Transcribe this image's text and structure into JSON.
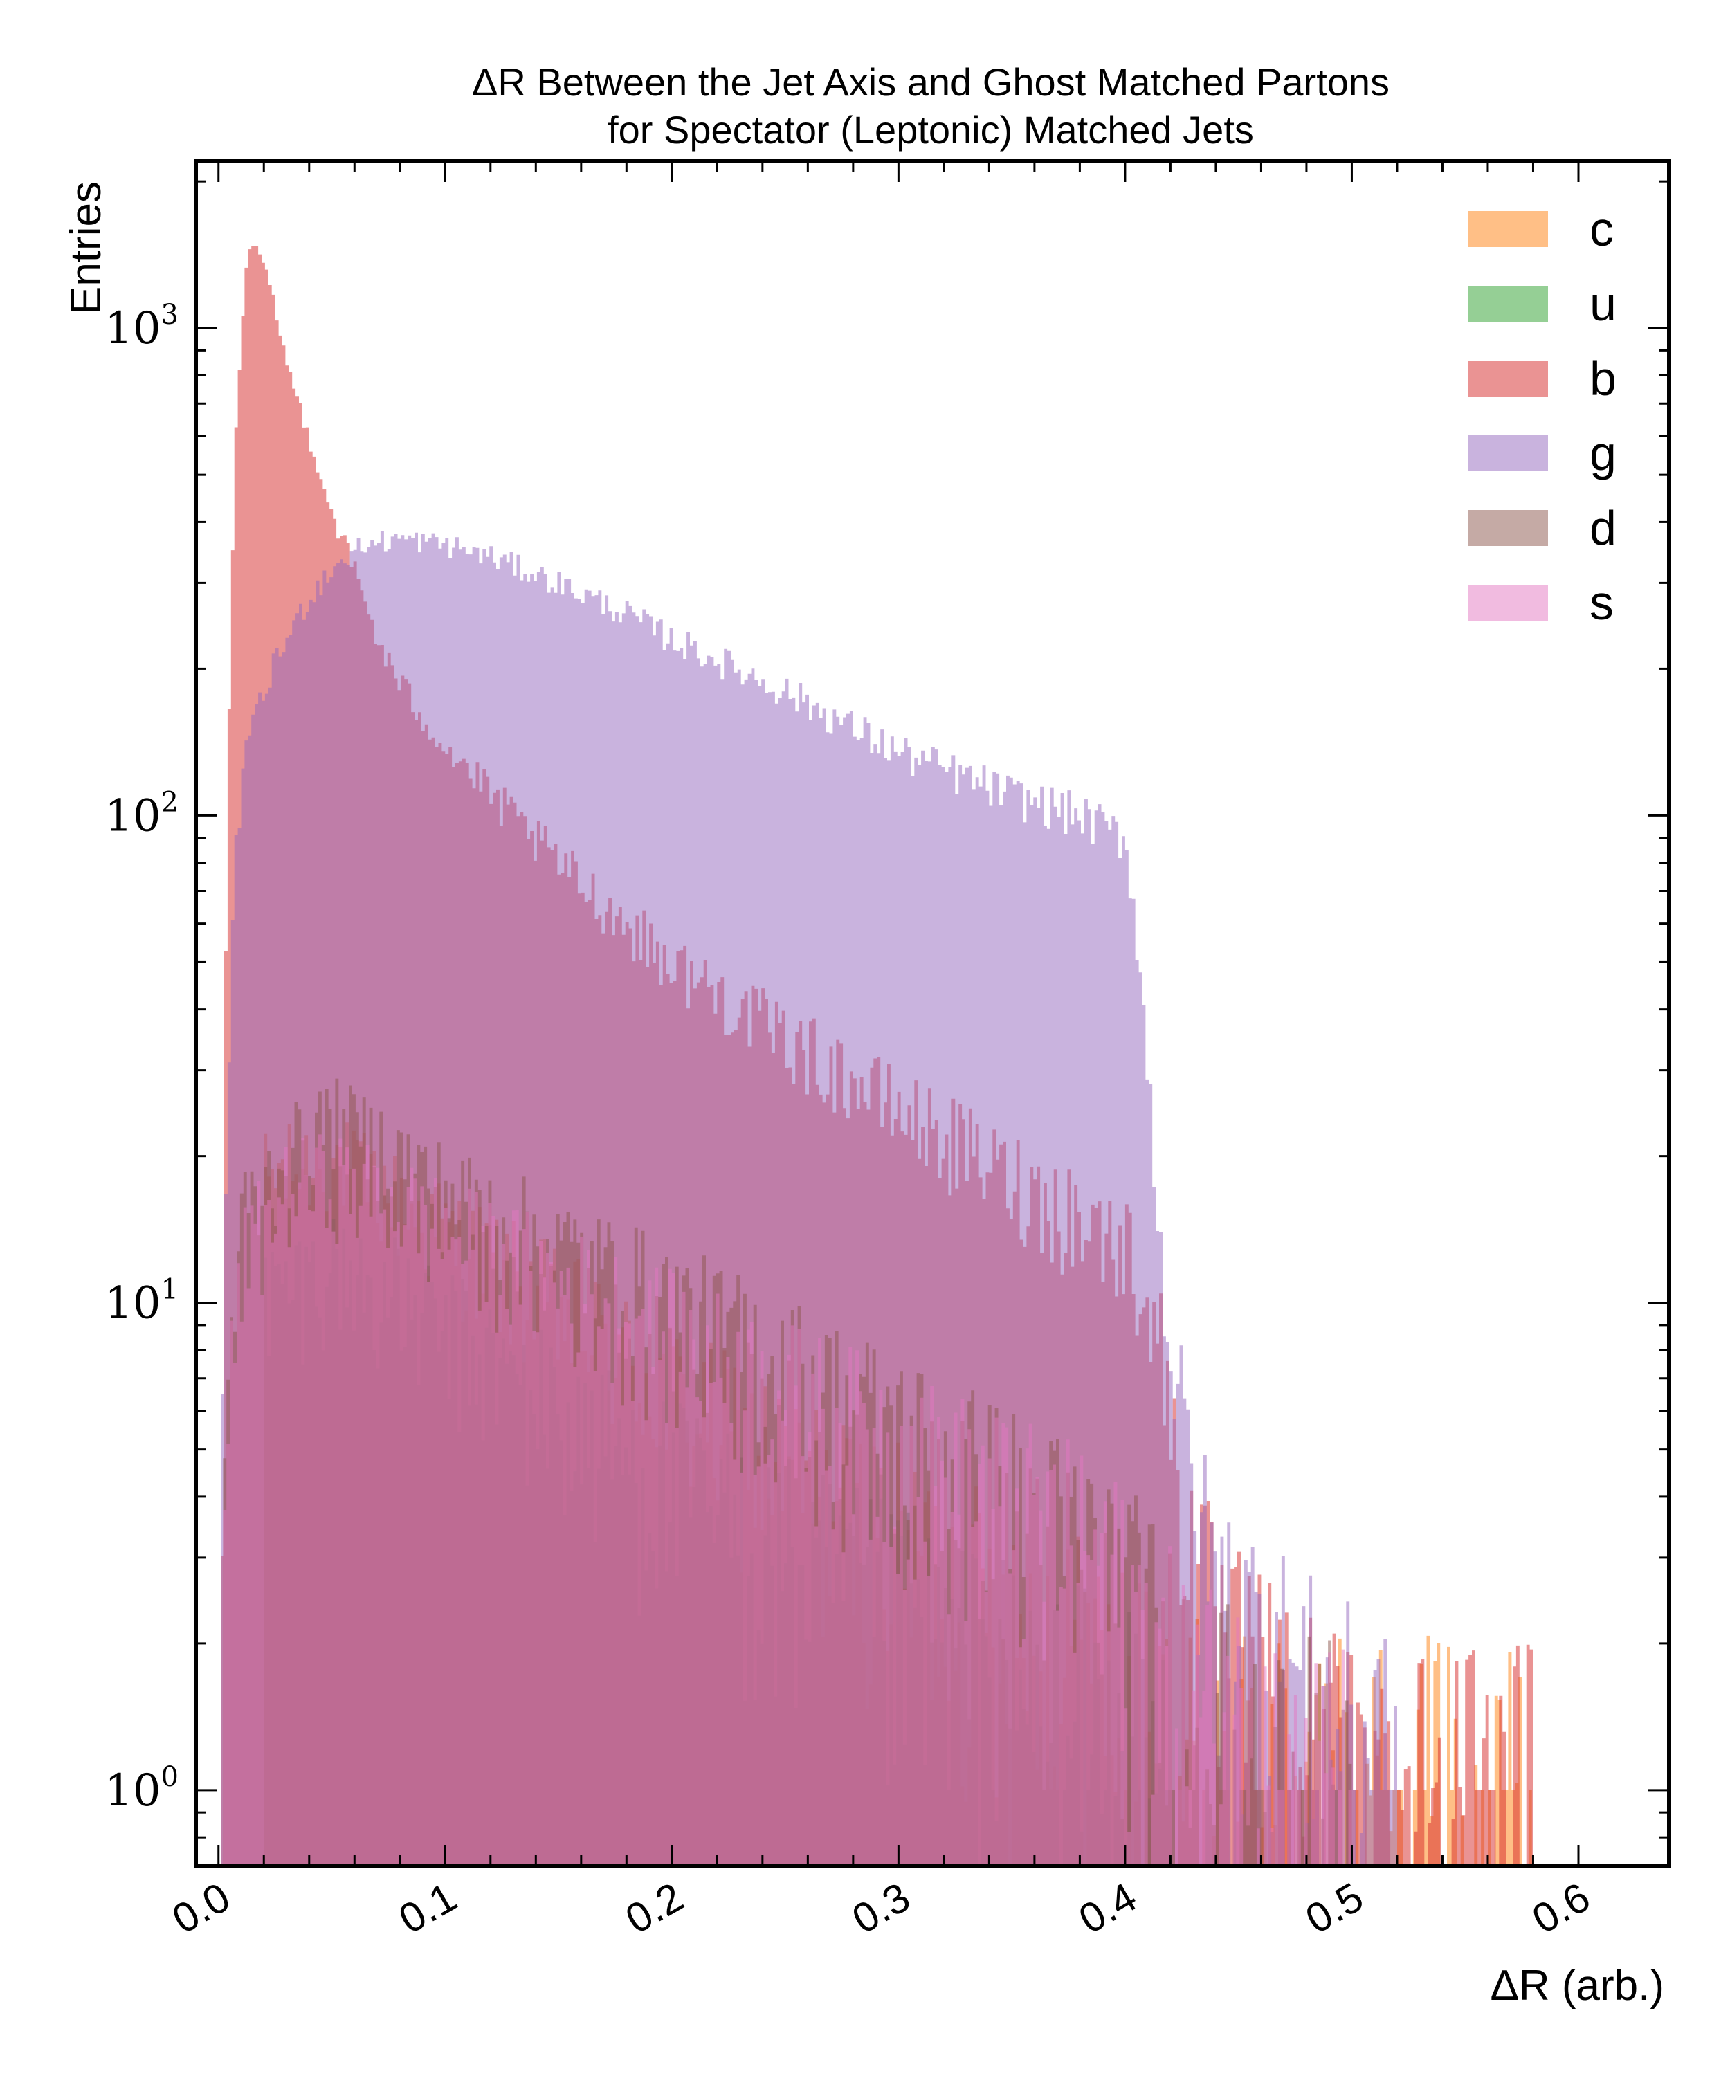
{
  "chart_data": {
    "type": "histogram",
    "title_line1": "ΔR Between the Jet Axis and Ghost Matched Partons",
    "title_line2": "for Spectator (Leptonic) Matched Jets",
    "xlabel": "ΔR (arb.)",
    "ylabel": "Entries",
    "xlim": [
      -0.01,
      0.64
    ],
    "ylim": [
      0.7,
      2200
    ],
    "yscale": "log",
    "grid": false,
    "legend_position": "top-right",
    "x_ticks": [
      {
        "value": 0.0,
        "label": "0.0"
      },
      {
        "value": 0.1,
        "label": "0.1"
      },
      {
        "value": 0.2,
        "label": "0.2"
      },
      {
        "value": 0.3,
        "label": "0.3"
      },
      {
        "value": 0.4,
        "label": "0.4"
      },
      {
        "value": 0.5,
        "label": "0.5"
      },
      {
        "value": 0.6,
        "label": "0.6"
      }
    ],
    "y_ticks": [
      {
        "value": 1,
        "base": "10",
        "exp": "0"
      },
      {
        "value": 10,
        "base": "10",
        "exp": "1"
      },
      {
        "value": 100,
        "base": "10",
        "exp": "2"
      },
      {
        "value": 1000,
        "base": "10",
        "exp": "3"
      }
    ],
    "series": [
      {
        "name": "c",
        "color": "#ff7f0e",
        "opacity": 0.5,
        "points": [
          [
            0.02,
            18
          ],
          [
            0.05,
            20
          ],
          [
            0.08,
            16
          ],
          [
            0.12,
            12
          ],
          [
            0.16,
            9
          ],
          [
            0.2,
            6.5
          ],
          [
            0.25,
            4.5
          ],
          [
            0.3,
            3.2
          ],
          [
            0.35,
            2.3
          ],
          [
            0.39,
            1.8
          ],
          [
            0.42,
            1.3
          ],
          [
            0.44,
            1
          ],
          [
            0.47,
            1
          ],
          [
            0.51,
            1
          ],
          [
            0.55,
            1
          ],
          [
            0.58,
            1
          ]
        ]
      },
      {
        "name": "u",
        "color": "#2ca02c",
        "opacity": 0.5,
        "points": [
          [
            0.02,
            10
          ],
          [
            0.05,
            12
          ],
          [
            0.08,
            10
          ],
          [
            0.12,
            7.5
          ],
          [
            0.16,
            5.5
          ],
          [
            0.2,
            4.2
          ],
          [
            0.25,
            3
          ],
          [
            0.3,
            2.2
          ],
          [
            0.35,
            1.6
          ],
          [
            0.39,
            1.3
          ],
          [
            0.42,
            1
          ]
        ]
      },
      {
        "name": "b",
        "color": "#d62728",
        "opacity": 0.5,
        "points": [
          [
            0.001,
            1.5
          ],
          [
            0.003,
            40
          ],
          [
            0.005,
            200
          ],
          [
            0.008,
            700
          ],
          [
            0.012,
            1300
          ],
          [
            0.015,
            1500
          ],
          [
            0.02,
            1350
          ],
          [
            0.025,
            1100
          ],
          [
            0.03,
            850
          ],
          [
            0.04,
            600
          ],
          [
            0.05,
            420
          ],
          [
            0.06,
            320
          ],
          [
            0.07,
            230
          ],
          [
            0.08,
            185
          ],
          [
            0.1,
            140
          ],
          [
            0.12,
            110
          ],
          [
            0.15,
            80
          ],
          [
            0.18,
            60
          ],
          [
            0.2,
            50
          ],
          [
            0.25,
            35
          ],
          [
            0.3,
            25
          ],
          [
            0.35,
            18
          ],
          [
            0.38,
            15
          ],
          [
            0.4,
            13
          ],
          [
            0.41,
            11
          ],
          [
            0.42,
            6
          ],
          [
            0.43,
            3
          ],
          [
            0.44,
            2
          ],
          [
            0.46,
            1.5
          ],
          [
            0.5,
            1
          ],
          [
            0.55,
            1
          ],
          [
            0.58,
            1
          ]
        ]
      },
      {
        "name": "g",
        "color": "#9467bd",
        "opacity": 0.5,
        "points": [
          [
            0.001,
            2
          ],
          [
            0.003,
            15
          ],
          [
            0.006,
            60
          ],
          [
            0.01,
            120
          ],
          [
            0.02,
            180
          ],
          [
            0.03,
            230
          ],
          [
            0.04,
            280
          ],
          [
            0.05,
            320
          ],
          [
            0.06,
            350
          ],
          [
            0.07,
            365
          ],
          [
            0.08,
            370
          ],
          [
            0.1,
            360
          ],
          [
            0.12,
            340
          ],
          [
            0.15,
            300
          ],
          [
            0.18,
            260
          ],
          [
            0.2,
            230
          ],
          [
            0.25,
            180
          ],
          [
            0.3,
            135
          ],
          [
            0.35,
            110
          ],
          [
            0.38,
            100
          ],
          [
            0.4,
            90
          ],
          [
            0.405,
            60
          ],
          [
            0.41,
            30
          ],
          [
            0.415,
            15
          ],
          [
            0.42,
            8
          ],
          [
            0.43,
            4
          ],
          [
            0.44,
            2.5
          ],
          [
            0.46,
            2
          ],
          [
            0.48,
            1.5
          ],
          [
            0.5,
            1.2
          ],
          [
            0.52,
            1
          ]
        ]
      },
      {
        "name": "d",
        "color": "#8c564b",
        "opacity": 0.5,
        "points": [
          [
            0.002,
            5
          ],
          [
            0.01,
            15
          ],
          [
            0.03,
            20
          ],
          [
            0.05,
            24
          ],
          [
            0.08,
            20
          ],
          [
            0.1,
            17
          ],
          [
            0.15,
            13
          ],
          [
            0.2,
            10
          ],
          [
            0.25,
            7.5
          ],
          [
            0.3,
            5.5
          ],
          [
            0.35,
            4
          ],
          [
            0.39,
            3
          ],
          [
            0.41,
            2.2
          ],
          [
            0.43,
            1.5
          ],
          [
            0.46,
            1
          ],
          [
            0.5,
            1
          ]
        ]
      },
      {
        "name": "s",
        "color": "#e377c2",
        "opacity": 0.5,
        "points": [
          [
            0.002,
            4
          ],
          [
            0.01,
            12
          ],
          [
            0.03,
            17
          ],
          [
            0.05,
            18
          ],
          [
            0.08,
            16
          ],
          [
            0.1,
            14
          ],
          [
            0.15,
            11
          ],
          [
            0.2,
            8.5
          ],
          [
            0.25,
            6.5
          ],
          [
            0.3,
            5
          ],
          [
            0.35,
            3.8
          ],
          [
            0.39,
            3
          ],
          [
            0.41,
            2
          ],
          [
            0.43,
            1.5
          ],
          [
            0.46,
            1.2
          ],
          [
            0.5,
            1
          ]
        ]
      }
    ]
  }
}
